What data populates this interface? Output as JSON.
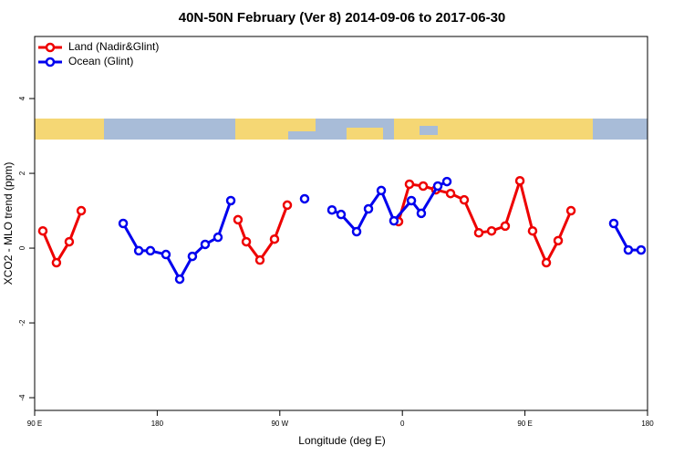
{
  "chart_data": {
    "type": "line",
    "title": "40N-50N February (Ver 8)   2014-09-06 to 2017-06-30",
    "x_label": "Longitude (deg E)",
    "y_label": "XCO2 - MLO trend (ppm)",
    "xlim": [
      90,
      540
    ],
    "xticks": [
      {
        "value": 90,
        "label": "90 E"
      },
      {
        "value": 180,
        "label": "180"
      },
      {
        "value": 270,
        "label": "90 W"
      },
      {
        "value": 360,
        "label": "0"
      },
      {
        "value": 450,
        "label": "90 E"
      },
      {
        "value": 540,
        "label": "180"
      }
    ],
    "ylim": [
      -4.34,
      5.66
    ],
    "yticks": [
      -4,
      -2,
      0,
      2,
      4
    ],
    "legend": "topleft",
    "series": [
      {
        "name": "Land (Nadir&Glint)",
        "color": "#ee0000",
        "x": [
          96,
          106,
          115.4,
          124.2,
          null,
          239.3,
          245.4,
          255.4,
          266.1,
          275.5,
          null,
          357.2,
          365.2,
          375.3,
          384.6,
          395.4,
          405.4,
          416.1,
          425.5,
          435.5,
          446.3,
          455.6,
          465.7,
          474.4,
          483.8
        ],
        "values": [
          0.46,
          -0.39,
          0.17,
          1.0,
          null,
          0.76,
          0.17,
          -0.32,
          0.24,
          1.15,
          null,
          0.71,
          1.71,
          1.66,
          1.56,
          1.46,
          1.29,
          0.41,
          0.46,
          0.59,
          1.8,
          0.46,
          -0.39,
          0.2,
          1.0
        ]
      },
      {
        "name": "Ocean (Glint)",
        "color": "#0000ee",
        "x": [
          155,
          166.4,
          175,
          186.4,
          196.5,
          205.8,
          215.2,
          224.6,
          234,
          null,
          288.2,
          null,
          308.3,
          315,
          326.4,
          335.1,
          344.5,
          353.8,
          366.6,
          373.9,
          386,
          392.7,
          null,
          515.2,
          525.9,
          535.3
        ],
        "values": [
          0.66,
          -0.07,
          -0.07,
          -0.17,
          -0.83,
          -0.22,
          0.1,
          0.29,
          1.27,
          null,
          1.32,
          null,
          1.02,
          0.9,
          0.44,
          1.05,
          1.54,
          0.73,
          1.27,
          0.93,
          1.66,
          1.78,
          null,
          0.66,
          -0.05,
          -0.05
        ]
      }
    ]
  }
}
